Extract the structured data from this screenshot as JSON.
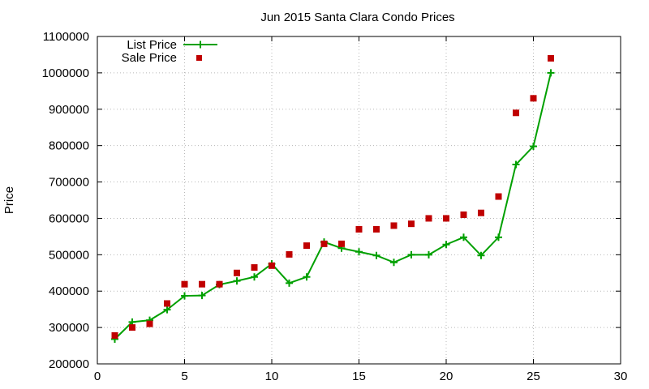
{
  "colors": {
    "list_price": "#00a000",
    "sale_price": "#c00000"
  },
  "chart_data": {
    "type": "line",
    "title": "Jun 2015 Santa Clara Condo Prices",
    "xlabel": "",
    "ylabel": "Price",
    "xlim": [
      0,
      30
    ],
    "ylim": [
      200000,
      1100000
    ],
    "xticks": [
      0,
      5,
      10,
      15,
      20,
      25,
      30
    ],
    "yticks": [
      200000,
      300000,
      400000,
      500000,
      600000,
      700000,
      800000,
      900000,
      1000000,
      1100000
    ],
    "x_tick_labels": [
      "0",
      "5",
      "10",
      "15",
      "20",
      "25",
      "30"
    ],
    "y_tick_labels": [
      "200000",
      "300000",
      "400000",
      "500000",
      "600000",
      "700000",
      "800000",
      "900000",
      "1000000",
      "1100000"
    ],
    "grid": true,
    "legend_position": "top-left",
    "series": [
      {
        "name": "List Price",
        "style": "linespoints",
        "marker": "plus",
        "color": "#00a000",
        "x": [
          1,
          2,
          3,
          4,
          5,
          6,
          7,
          8,
          9,
          10,
          11,
          12,
          13,
          14,
          15,
          16,
          17,
          18,
          19,
          20,
          21,
          22,
          23,
          24,
          25,
          26
        ],
        "values": [
          268000,
          315000,
          320000,
          349000,
          387000,
          388000,
          418000,
          428000,
          439000,
          475000,
          422000,
          439000,
          535000,
          518000,
          508000,
          498000,
          479000,
          500000,
          500000,
          528000,
          548000,
          498000,
          548000,
          748000,
          798000,
          1000000
        ]
      },
      {
        "name": "Sale Price",
        "style": "points",
        "marker": "square",
        "color": "#c00000",
        "x": [
          1,
          2,
          3,
          4,
          5,
          6,
          7,
          8,
          9,
          10,
          11,
          12,
          13,
          14,
          15,
          16,
          17,
          18,
          19,
          20,
          21,
          22,
          23,
          24,
          25,
          26
        ],
        "values": [
          278000,
          300000,
          310000,
          366000,
          419000,
          419000,
          419000,
          450000,
          465000,
          470000,
          501000,
          525000,
          530000,
          530000,
          570000,
          570000,
          580000,
          585000,
          600000,
          600000,
          610000,
          615000,
          660000,
          890000,
          930000,
          1040000
        ]
      }
    ]
  }
}
